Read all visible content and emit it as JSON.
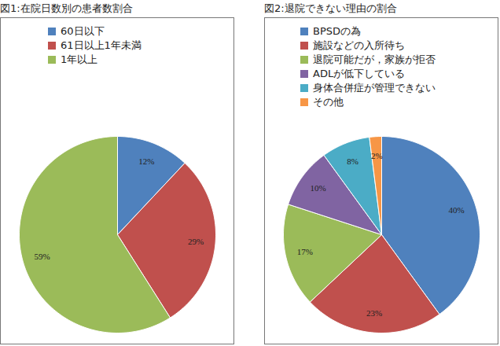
{
  "chart_data": [
    {
      "type": "pie",
      "title": "図1:在院日数別の患者数割合",
      "categories": [
        "60日以下",
        "61日以上1年未満",
        "1年以上"
      ],
      "values": [
        12,
        29,
        59
      ],
      "value_labels": [
        "12%",
        "29%",
        "59%"
      ],
      "colors": [
        "#4F81BD",
        "#C0504D",
        "#9BBB59"
      ],
      "data_labels": true,
      "legend": "top"
    },
    {
      "type": "pie",
      "title": "図2:退院できない理由の割合",
      "categories": [
        "BPSDの為",
        "施設などの入所待ち",
        "退院可能だが，家族が拒否",
        "ADLが低下している",
        "身体合併症が管理できない",
        "その他"
      ],
      "values": [
        40,
        23,
        17,
        10,
        8,
        2
      ],
      "value_labels": [
        "40%",
        "23%",
        "17%",
        "10%",
        "8%",
        "2%"
      ],
      "colors": [
        "#4F81BD",
        "#C0504D",
        "#9BBB59",
        "#8064A2",
        "#4BACC6",
        "#F79646"
      ],
      "data_labels": true,
      "legend": "top"
    }
  ]
}
